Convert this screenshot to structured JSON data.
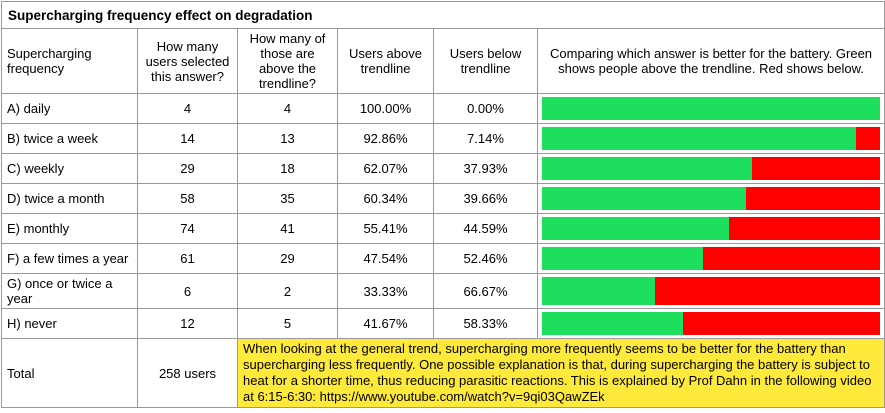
{
  "title": "Supercharging frequency effect on degradation",
  "columns": [
    "Supercharging frequency",
    "How many users selected this answer?",
    "How many of those are above the trendline?",
    "Users above trendline",
    "Users below trendline",
    "Comparing which answer is better for the battery. Green shows people above the trendline. Red shows below."
  ],
  "rows": [
    {
      "frequency": "A) daily",
      "selected": "4",
      "above": "4",
      "above_pct": "100.00%",
      "below_pct": "0.00%",
      "green_pct": 100
    },
    {
      "frequency": "B) twice a week",
      "selected": "14",
      "above": "13",
      "above_pct": "92.86%",
      "below_pct": "7.14%",
      "green_pct": 92.86
    },
    {
      "frequency": "C) weekly",
      "selected": "29",
      "above": "18",
      "above_pct": "62.07%",
      "below_pct": "37.93%",
      "green_pct": 62.07
    },
    {
      "frequency": "D) twice a month",
      "selected": "58",
      "above": "35",
      "above_pct": "60.34%",
      "below_pct": "39.66%",
      "green_pct": 60.34
    },
    {
      "frequency": "E) monthly",
      "selected": "74",
      "above": "41",
      "above_pct": "55.41%",
      "below_pct": "44.59%",
      "green_pct": 55.41
    },
    {
      "frequency": "F) a few times a year",
      "selected": "61",
      "above": "29",
      "above_pct": "47.54%",
      "below_pct": "52.46%",
      "green_pct": 47.54
    },
    {
      "frequency": "G) once or twice a year",
      "selected": "6",
      "above": "2",
      "above_pct": "33.33%",
      "below_pct": "66.67%",
      "green_pct": 33.33
    },
    {
      "frequency": "H) never",
      "selected": "12",
      "above": "5",
      "above_pct": "41.67%",
      "below_pct": "58.33%",
      "green_pct": 41.67
    }
  ],
  "total": {
    "label": "Total",
    "users": "258 users",
    "note_text": "When looking at the general trend, supercharging more frequently seems to be better for the battery than supercharging less frequently. One possible explanation is that, during supercharging the battery is subject to heat for a shorter time, thus reducing parasitic reactions. This is explained by Prof Dahn in the following video at 6:15-6:30: ",
    "note_url": "https://www.youtube.com/watch?v=9qi03QawZEk"
  },
  "colors": {
    "green": "#1ede5d",
    "red": "#ff0000",
    "yellow": "#ffe93b",
    "border": "#999999"
  },
  "chart_data": {
    "type": "table",
    "title": "Supercharging frequency effect on degradation",
    "columns": [
      "Supercharging frequency",
      "How many users selected this answer?",
      "How many of those are above the trendline?",
      "Users above trendline",
      "Users below trendline",
      "Comparing which answer is better for the battery. Green shows people above the trendline. Red shows below."
    ],
    "categories": [
      "A) daily",
      "B) twice a week",
      "C) weekly",
      "D) twice a month",
      "E) monthly",
      "F) a few times a year",
      "G) once or twice a year",
      "H) never"
    ],
    "users_selected": [
      4,
      14,
      29,
      58,
      74,
      61,
      6,
      12
    ],
    "users_above_trendline": [
      4,
      13,
      18,
      35,
      41,
      29,
      2,
      5
    ],
    "series": [
      {
        "name": "Users above trendline (%)",
        "color": "#1ede5d",
        "values": [
          100.0,
          92.86,
          62.07,
          60.34,
          55.41,
          47.54,
          33.33,
          41.67
        ]
      },
      {
        "name": "Users below trendline (%)",
        "color": "#ff0000",
        "values": [
          0.0,
          7.14,
          37.93,
          39.66,
          44.59,
          52.46,
          66.67,
          58.33
        ]
      }
    ],
    "bar_style": "horizontal stacked 100% bars embedded per row",
    "total_users": 258,
    "axis_range": [
      0,
      100
    ]
  }
}
